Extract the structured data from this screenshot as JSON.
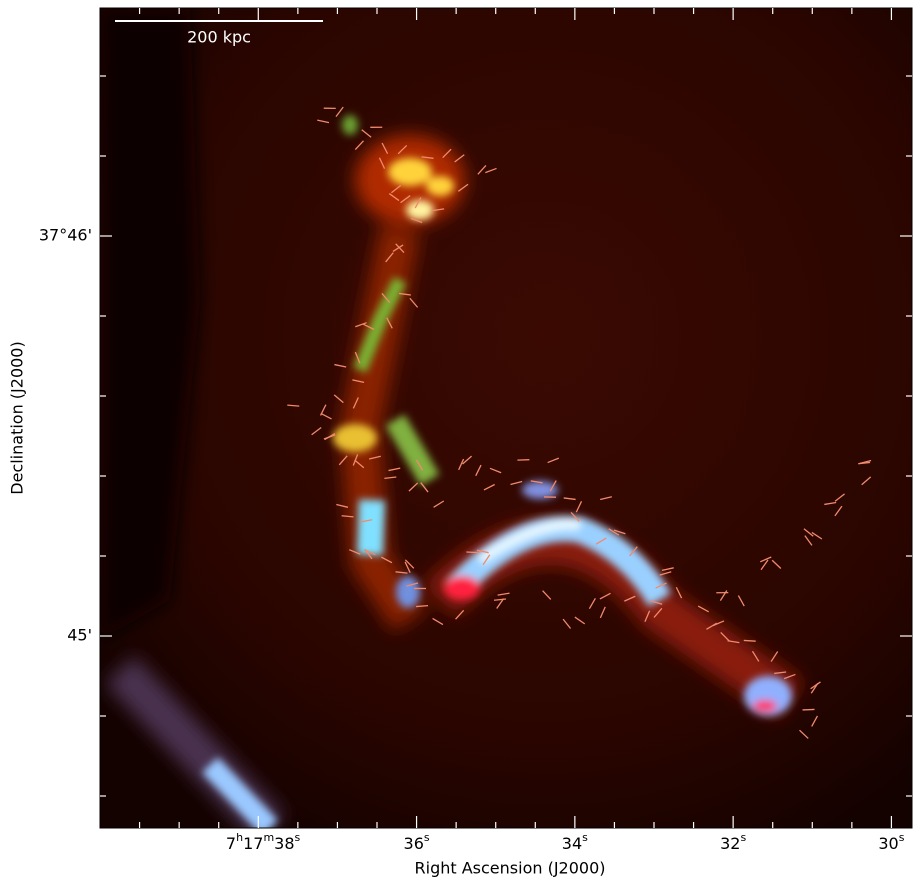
{
  "chart_data": {
    "type": "image",
    "xlabel": "Right Ascension (J2000)",
    "ylabel": "Declination (J2000)",
    "xlim": [
      40,
      29.74
    ],
    "xticks": [
      {
        "value": 38,
        "label": "7h17m38s"
      },
      {
        "value": 36,
        "label": "36s"
      },
      {
        "value": 34,
        "label": "34s"
      },
      {
        "value": 32,
        "label": "32s"
      },
      {
        "value": 30,
        "label": "30s"
      }
    ],
    "ylim": [
      44.52,
      46.57
    ],
    "yticks": [
      {
        "value": 46,
        "label": "37°46'"
      },
      {
        "value": 45,
        "label": "45'"
      }
    ],
    "annotations": [
      "200 kpc"
    ]
  }
}
